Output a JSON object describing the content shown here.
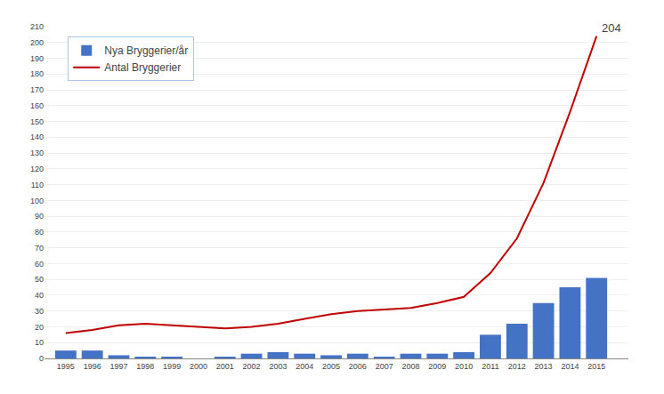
{
  "chart_data": {
    "type": "bar",
    "x": [
      1995,
      1996,
      1997,
      1998,
      1999,
      2000,
      2001,
      2002,
      2003,
      2004,
      2005,
      2006,
      2007,
      2008,
      2009,
      2010,
      2011,
      2012,
      2013,
      2014,
      2015
    ],
    "series": [
      {
        "name": "Nya Bryggerier/år",
        "type": "bar",
        "color": "#4472c4",
        "values": [
          5,
          5,
          2,
          1,
          1,
          0,
          1,
          3,
          4,
          3,
          2,
          3,
          1,
          3,
          3,
          4,
          15,
          22,
          35,
          45,
          51
        ]
      },
      {
        "name": "Antal Bryggerier",
        "type": "line",
        "color": "#c00000",
        "values": [
          16,
          18,
          21,
          22,
          21,
          20,
          19,
          20,
          22,
          25,
          28,
          30,
          31,
          32,
          35,
          39,
          54,
          76,
          111,
          156,
          204
        ]
      }
    ],
    "annotations": [
      {
        "text": "204",
        "x": 2015,
        "y": 204
      }
    ],
    "xlim": [
      1994.2,
      2016.2
    ],
    "xticks": [
      1995,
      1996,
      1997,
      1998,
      1999,
      2000,
      2001,
      2002,
      2003,
      2004,
      2005,
      2006,
      2007,
      2008,
      2009,
      2010,
      2011,
      2012,
      2013,
      2014,
      2015
    ],
    "ylim": [
      0,
      210
    ],
    "yticks": [
      0,
      10,
      20,
      30,
      40,
      50,
      60,
      70,
      80,
      90,
      100,
      110,
      120,
      130,
      140,
      150,
      160,
      170,
      180,
      190,
      200,
      210
    ],
    "grid": true,
    "legend": "upper left"
  }
}
